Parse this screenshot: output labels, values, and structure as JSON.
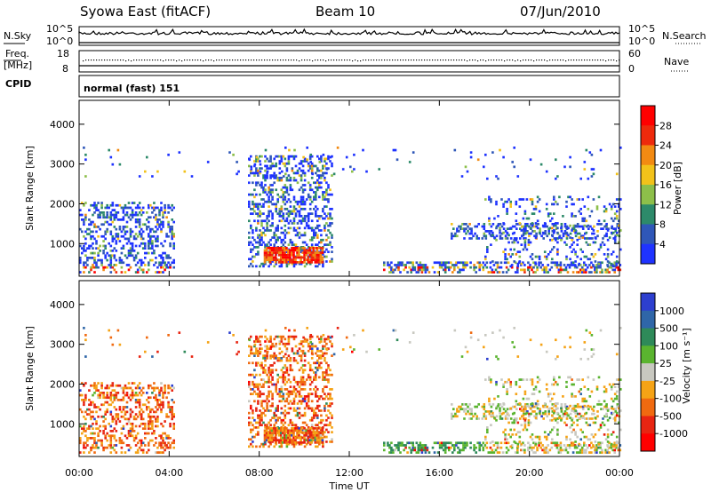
{
  "header": {
    "title": "Syowa East (fitACF)",
    "beam": "Beam 10",
    "date": "07/Jun/2010"
  },
  "noise_panel": {
    "left_label": "N.Sky",
    "right_label": "N.Search",
    "left_ticks": [
      "10^5",
      "10^0"
    ],
    "right_ticks": [
      "10^5",
      "10^0"
    ]
  },
  "freq_panel": {
    "left_label_1": "Freq.",
    "left_label_2": "[MHz]",
    "right_label": "Nave",
    "left_ticks": [
      "18",
      "8"
    ],
    "right_ticks": [
      "60",
      "0"
    ]
  },
  "cpid_panel": {
    "label": "CPID",
    "value": "normal (fast) 151"
  },
  "chart_data": [
    {
      "type": "heatmap",
      "title": "Power",
      "ylabel": "Slant Range [km]",
      "xlabel": "Time UT",
      "ylim": [
        180,
        4600
      ],
      "yticks": [
        "1000",
        "2000",
        "3000",
        "4000"
      ],
      "colorbar_label": "Power [dB]",
      "colorbar_ticks": [
        "4",
        "8",
        "12",
        "16",
        "20",
        "24",
        "28"
      ],
      "colorscale": [
        "#1f33ff",
        "#2f57b8",
        "#2d8a6a",
        "#8dbf4a",
        "#f2c21a",
        "#f28a12",
        "#ee2a0c",
        "#ff0000"
      ]
    },
    {
      "type": "heatmap",
      "title": "Velocity",
      "ylabel": "Slant Range [km]",
      "xlabel": "Time UT",
      "ylim": [
        180,
        4600
      ],
      "yticks": [
        "1000",
        "2000",
        "3000",
        "4000"
      ],
      "colorbar_label": "Velocity [m s⁻¹]",
      "colorbar_ticks": [
        "1000",
        "500",
        "100",
        "25",
        "-25",
        "-100",
        "-500",
        "-1000"
      ],
      "colorscale": [
        "#2d3fcf",
        "#2f66a8",
        "#2e8a59",
        "#5ab42f",
        "#c8c8c0",
        "#f5a316",
        "#f06a10",
        "#e82512",
        "#ff0000"
      ]
    }
  ],
  "time_axis": {
    "label": "Time UT",
    "ticks": [
      "00:00",
      "04:00",
      "08:00",
      "12:00",
      "16:00",
      "20:00",
      "00:00"
    ]
  }
}
